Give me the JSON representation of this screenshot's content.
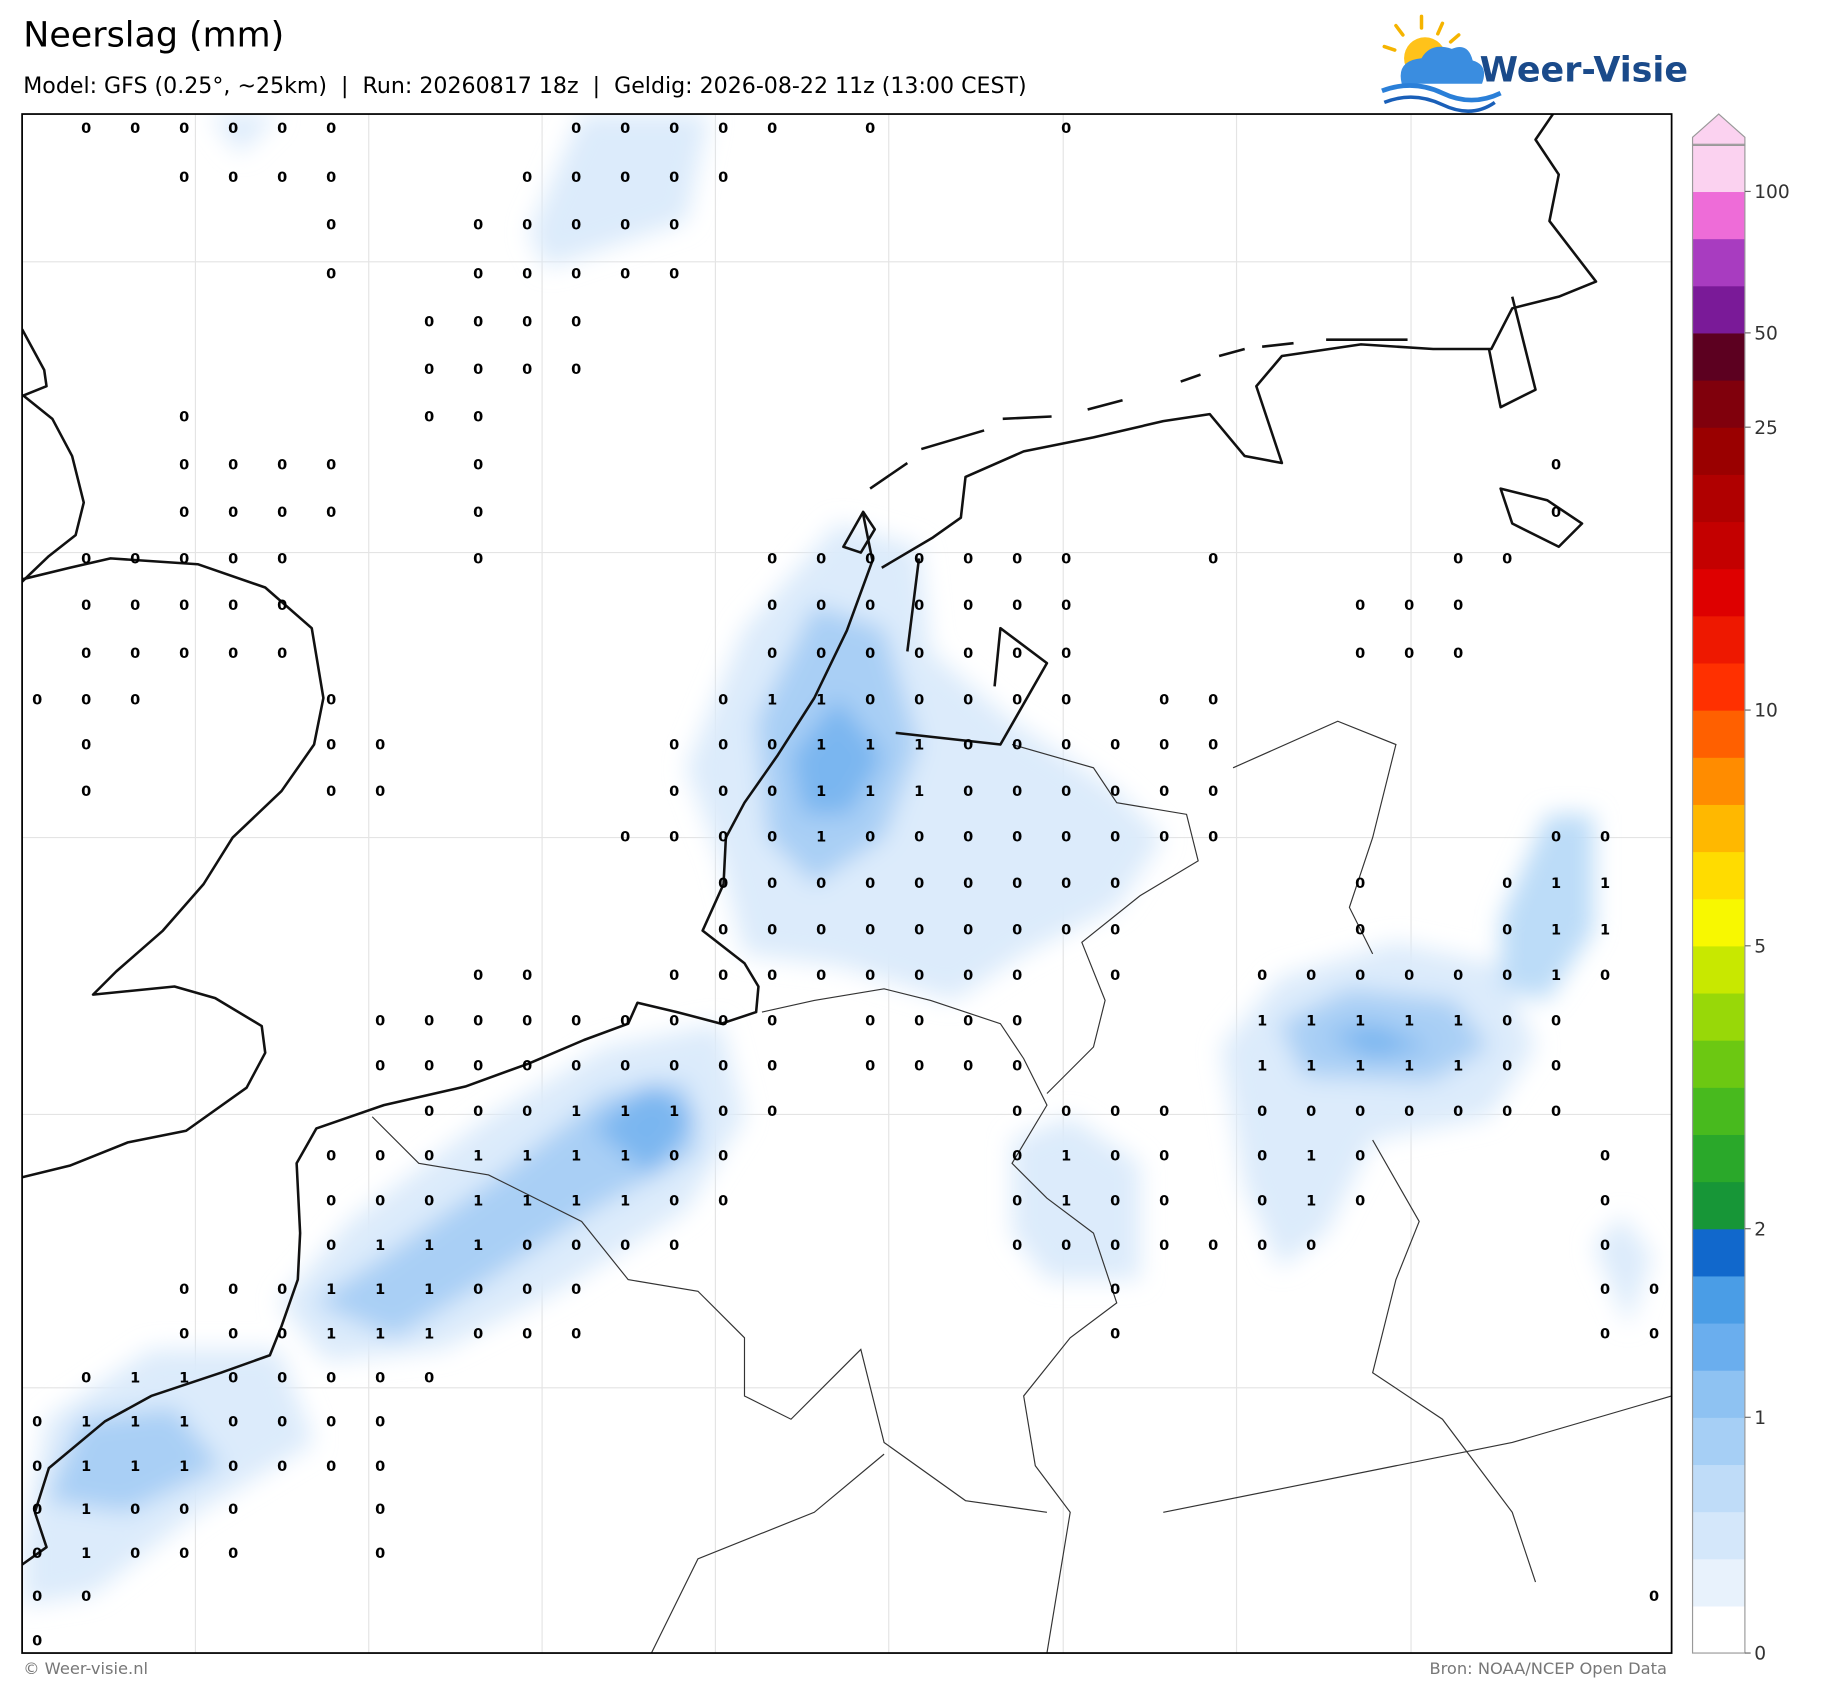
{
  "header": {
    "title": "Neerslag (mm)",
    "subtitle": "Model: GFS (0.25°, ~25km)  |  Run: 20260817 18z  |  Geldig: 2026-08-22 11z (13:00 CEST)"
  },
  "logo": {
    "text": "Weer-Visie"
  },
  "map": {
    "grid_values": [
      [
        null,
        0,
        0,
        0,
        0,
        0,
        0,
        null,
        null,
        null,
        null,
        0,
        0,
        0,
        0,
        0,
        null,
        0,
        null,
        null,
        null,
        0,
        null,
        null,
        null,
        null,
        null,
        null,
        null,
        null,
        null,
        null,
        null,
        null
      ],
      [
        null,
        null,
        null,
        0,
        0,
        0,
        0,
        null,
        null,
        null,
        0,
        0,
        0,
        0,
        0,
        null,
        null,
        null,
        null,
        null,
        null,
        null,
        null,
        null,
        null,
        null,
        null,
        null,
        null,
        null,
        null,
        null,
        null,
        null
      ],
      [
        null,
        null,
        null,
        null,
        null,
        null,
        0,
        null,
        null,
        0,
        0,
        0,
        0,
        0,
        null,
        null,
        null,
        null,
        null,
        null,
        null,
        null,
        null,
        null,
        null,
        null,
        null,
        null,
        null,
        null,
        null,
        null,
        null,
        null
      ],
      [
        null,
        null,
        null,
        null,
        null,
        null,
        0,
        null,
        null,
        0,
        0,
        0,
        0,
        0,
        null,
        null,
        null,
        null,
        null,
        null,
        null,
        null,
        null,
        null,
        null,
        null,
        null,
        null,
        null,
        null,
        null,
        null,
        null,
        null
      ],
      [
        null,
        null,
        null,
        null,
        null,
        null,
        null,
        null,
        0,
        0,
        0,
        0,
        null,
        null,
        null,
        null,
        null,
        null,
        null,
        null,
        null,
        null,
        null,
        null,
        null,
        null,
        null,
        null,
        null,
        null,
        null,
        null,
        null,
        null
      ],
      [
        null,
        null,
        null,
        null,
        null,
        null,
        null,
        null,
        0,
        0,
        0,
        0,
        null,
        null,
        null,
        null,
        null,
        null,
        null,
        null,
        null,
        null,
        null,
        null,
        null,
        null,
        null,
        null,
        null,
        null,
        null,
        null,
        null,
        null
      ],
      [
        null,
        null,
        null,
        0,
        null,
        null,
        null,
        null,
        0,
        0,
        null,
        null,
        null,
        null,
        null,
        null,
        null,
        null,
        null,
        null,
        null,
        null,
        null,
        null,
        null,
        null,
        null,
        null,
        null,
        null,
        null,
        null,
        null,
        null
      ],
      [
        null,
        null,
        null,
        0,
        0,
        0,
        0,
        null,
        null,
        0,
        null,
        null,
        null,
        null,
        null,
        null,
        null,
        null,
        null,
        null,
        null,
        null,
        null,
        null,
        null,
        null,
        null,
        null,
        null,
        null,
        null,
        0,
        null,
        null
      ],
      [
        null,
        null,
        null,
        0,
        0,
        0,
        0,
        null,
        null,
        0,
        null,
        null,
        null,
        null,
        null,
        null,
        null,
        null,
        null,
        null,
        null,
        null,
        null,
        null,
        null,
        null,
        null,
        null,
        null,
        null,
        null,
        0,
        null,
        null
      ],
      [
        null,
        0,
        0,
        0,
        0,
        0,
        null,
        null,
        null,
        0,
        null,
        null,
        null,
        null,
        null,
        0,
        0,
        0,
        0,
        0,
        0,
        0,
        null,
        null,
        0,
        null,
        null,
        null,
        null,
        0,
        0,
        null,
        null,
        null
      ],
      [
        null,
        0,
        0,
        0,
        0,
        0,
        null,
        null,
        null,
        null,
        null,
        null,
        null,
        null,
        null,
        0,
        0,
        0,
        0,
        0,
        0,
        0,
        null,
        null,
        null,
        null,
        null,
        0,
        0,
        0,
        null,
        null,
        null,
        null
      ],
      [
        null,
        0,
        0,
        0,
        0,
        0,
        null,
        null,
        null,
        null,
        null,
        null,
        null,
        null,
        null,
        0,
        0,
        0,
        0,
        0,
        0,
        0,
        null,
        null,
        null,
        null,
        null,
        0,
        0,
        0,
        null,
        null,
        null,
        null
      ],
      [
        0,
        0,
        0,
        null,
        null,
        null,
        0,
        null,
        null,
        null,
        null,
        null,
        null,
        null,
        0,
        1,
        1,
        0,
        0,
        0,
        0,
        0,
        null,
        0,
        0,
        null,
        null,
        null,
        null,
        null,
        null,
        null,
        null,
        null
      ],
      [
        null,
        0,
        null,
        null,
        null,
        null,
        0,
        0,
        null,
        null,
        null,
        null,
        null,
        0,
        0,
        0,
        1,
        1,
        1,
        0,
        0,
        0,
        0,
        0,
        0,
        null,
        null,
        null,
        null,
        null,
        null,
        null,
        null,
        null
      ],
      [
        null,
        0,
        null,
        null,
        null,
        null,
        0,
        0,
        null,
        null,
        null,
        null,
        null,
        0,
        0,
        0,
        1,
        1,
        1,
        0,
        0,
        0,
        0,
        0,
        0,
        null,
        null,
        null,
        null,
        null,
        null,
        null,
        null,
        null
      ],
      [
        null,
        null,
        null,
        null,
        null,
        null,
        null,
        null,
        null,
        null,
        null,
        null,
        0,
        0,
        0,
        0,
        1,
        0,
        0,
        0,
        0,
        0,
        0,
        0,
        0,
        null,
        null,
        null,
        null,
        null,
        null,
        0,
        0,
        null
      ],
      [
        null,
        null,
        null,
        null,
        null,
        null,
        null,
        null,
        null,
        null,
        null,
        null,
        null,
        null,
        0,
        0,
        0,
        0,
        0,
        0,
        0,
        0,
        0,
        null,
        null,
        null,
        null,
        0,
        null,
        null,
        0,
        1,
        1,
        null
      ],
      [
        null,
        null,
        null,
        null,
        null,
        null,
        null,
        null,
        null,
        null,
        null,
        null,
        null,
        null,
        0,
        0,
        0,
        0,
        0,
        0,
        0,
        0,
        0,
        null,
        null,
        null,
        null,
        0,
        null,
        null,
        0,
        1,
        1,
        null
      ],
      [
        null,
        null,
        null,
        null,
        null,
        null,
        null,
        null,
        null,
        0,
        0,
        null,
        null,
        0,
        0,
        0,
        0,
        0,
        0,
        0,
        0,
        null,
        0,
        null,
        null,
        0,
        0,
        0,
        0,
        0,
        0,
        1,
        0,
        null
      ],
      [
        null,
        null,
        null,
        null,
        null,
        null,
        null,
        0,
        0,
        0,
        0,
        0,
        0,
        0,
        0,
        0,
        null,
        0,
        0,
        0,
        0,
        null,
        null,
        null,
        null,
        1,
        1,
        1,
        1,
        1,
        0,
        0,
        null,
        null
      ],
      [
        null,
        null,
        null,
        null,
        null,
        null,
        null,
        0,
        0,
        0,
        0,
        0,
        0,
        0,
        0,
        0,
        null,
        0,
        0,
        0,
        0,
        null,
        null,
        null,
        null,
        1,
        1,
        1,
        1,
        1,
        0,
        0,
        null,
        null
      ],
      [
        null,
        null,
        null,
        null,
        null,
        null,
        null,
        null,
        0,
        0,
        0,
        1,
        1,
        1,
        0,
        0,
        null,
        null,
        null,
        null,
        0,
        0,
        0,
        0,
        null,
        0,
        0,
        0,
        0,
        0,
        0,
        0,
        null,
        null
      ],
      [
        null,
        null,
        null,
        null,
        null,
        null,
        0,
        0,
        0,
        1,
        1,
        1,
        1,
        0,
        0,
        null,
        null,
        null,
        null,
        null,
        0,
        1,
        0,
        0,
        null,
        0,
        1,
        0,
        null,
        null,
        null,
        null,
        0,
        null
      ],
      [
        null,
        null,
        null,
        null,
        null,
        null,
        0,
        0,
        0,
        1,
        1,
        1,
        1,
        0,
        0,
        null,
        null,
        null,
        null,
        null,
        0,
        1,
        0,
        0,
        null,
        0,
        1,
        0,
        null,
        null,
        null,
        null,
        0,
        null
      ],
      [
        null,
        null,
        null,
        null,
        null,
        null,
        0,
        1,
        1,
        1,
        0,
        0,
        0,
        0,
        null,
        null,
        null,
        null,
        null,
        null,
        0,
        0,
        0,
        0,
        0,
        0,
        0,
        null,
        null,
        null,
        null,
        null,
        0,
        null
      ],
      [
        null,
        null,
        null,
        0,
        0,
        0,
        1,
        1,
        1,
        0,
        0,
        0,
        null,
        null,
        null,
        null,
        null,
        null,
        null,
        null,
        null,
        null,
        0,
        null,
        null,
        null,
        null,
        null,
        null,
        null,
        null,
        null,
        0,
        0
      ],
      [
        null,
        null,
        null,
        0,
        0,
        0,
        1,
        1,
        1,
        0,
        0,
        0,
        null,
        null,
        null,
        null,
        null,
        null,
        null,
        null,
        null,
        null,
        0,
        null,
        null,
        null,
        null,
        null,
        null,
        null,
        null,
        null,
        0,
        0
      ],
      [
        null,
        0,
        1,
        1,
        0,
        0,
        0,
        0,
        0,
        null,
        null,
        null,
        null,
        null,
        null,
        null,
        null,
        null,
        null,
        null,
        null,
        null,
        null,
        null,
        null,
        null,
        null,
        null,
        null,
        null,
        null,
        null,
        null,
        null
      ],
      [
        0,
        1,
        1,
        1,
        0,
        0,
        0,
        0,
        null,
        null,
        null,
        null,
        null,
        null,
        null,
        null,
        null,
        null,
        null,
        null,
        null,
        null,
        null,
        null,
        null,
        null,
        null,
        null,
        null,
        null,
        null,
        null,
        null,
        null
      ],
      [
        0,
        1,
        1,
        1,
        0,
        0,
        0,
        0,
        null,
        null,
        null,
        null,
        null,
        null,
        null,
        null,
        null,
        null,
        null,
        null,
        null,
        null,
        null,
        null,
        null,
        null,
        null,
        null,
        null,
        null,
        null,
        null,
        null,
        null
      ],
      [
        0,
        1,
        0,
        0,
        0,
        null,
        null,
        0,
        null,
        null,
        null,
        null,
        null,
        null,
        null,
        null,
        null,
        null,
        null,
        null,
        null,
        null,
        null,
        null,
        null,
        null,
        null,
        null,
        null,
        null,
        null,
        null,
        null,
        null
      ],
      [
        0,
        1,
        0,
        0,
        0,
        null,
        null,
        0,
        null,
        null,
        null,
        null,
        null,
        null,
        null,
        null,
        null,
        null,
        null,
        null,
        null,
        null,
        null,
        null,
        null,
        null,
        null,
        null,
        null,
        null,
        null,
        null,
        null,
        null
      ],
      [
        0,
        0,
        null,
        null,
        null,
        null,
        null,
        null,
        null,
        null,
        null,
        null,
        null,
        null,
        null,
        null,
        null,
        null,
        null,
        null,
        null,
        null,
        null,
        null,
        null,
        null,
        null,
        null,
        null,
        null,
        null,
        null,
        null,
        0
      ],
      [
        0,
        null,
        null,
        null,
        null,
        null,
        null,
        null,
        null,
        null,
        null,
        null,
        null,
        null,
        null,
        null,
        null,
        null,
        null,
        null,
        null,
        null,
        null,
        null,
        null,
        null,
        null,
        null,
        null,
        null,
        null,
        null,
        null,
        null
      ]
    ]
  },
  "colorbar": {
    "colors": [
      "#ffffff",
      "#e8f2fc",
      "#d4e7fa",
      "#bfdcf8",
      "#a6cff5",
      "#8ec2f2",
      "#6aaeee",
      "#4a9de6",
      "#1168cc",
      "#179637",
      "#2aa82a",
      "#48ba1e",
      "#6cc812",
      "#98d808",
      "#c8e800",
      "#f8f800",
      "#ffdc00",
      "#ffb800",
      "#ff8c00",
      "#ff6000",
      "#ff3000",
      "#ee1800",
      "#de0000",
      "#c40000",
      "#b00000",
      "#9a0000",
      "#80000c",
      "#5c0020",
      "#7a1a98",
      "#a83cc0",
      "#ee6cd8",
      "#fbd2f0"
    ],
    "ticks": [
      0,
      1,
      2,
      5,
      10,
      25,
      50,
      100
    ]
  },
  "footer": {
    "left": "© Weer-visie.nl",
    "right": "Bron: NOAA/NCEP Open Data"
  }
}
